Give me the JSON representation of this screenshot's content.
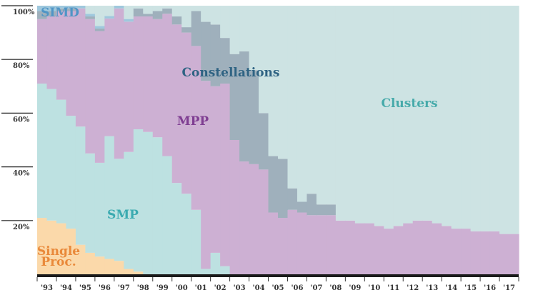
{
  "chart_data": {
    "type": "area",
    "stacked": true,
    "step": true,
    "normalized_to_percent": true,
    "title": "",
    "xlabel": "",
    "ylabel": "",
    "ylim": [
      0,
      100
    ],
    "x_tick_labels": [
      "'93",
      "'94",
      "'95",
      "'96",
      "'97",
      "'98",
      "'99",
      "'00",
      "'01",
      "'02",
      "'03",
      "'04",
      "'05",
      "'06",
      "'07",
      "'08",
      "'09",
      "'10",
      "'11",
      "'12",
      "'13",
      "'14",
      "'15",
      "'16",
      "'17"
    ],
    "y_tick_labels": [
      "20%",
      "40%",
      "60%",
      "80%",
      "100%"
    ],
    "y_ticks": [
      20,
      40,
      60,
      80,
      100
    ],
    "grid": false,
    "bars_per_year": 2,
    "series": [
      {
        "name": "Single Proc.",
        "label_lines": [
          "Single",
          "Proc."
        ],
        "color": "#fbd9aa",
        "label_color": "#e9893a",
        "values": [
          21,
          20,
          19,
          17,
          11,
          8,
          7,
          6,
          5,
          2,
          1,
          0,
          0,
          0,
          0,
          0,
          0,
          0,
          0,
          0,
          0,
          0,
          0,
          0,
          0,
          0,
          0,
          0,
          0,
          0,
          0,
          0,
          0,
          0,
          0,
          0,
          0,
          0,
          0,
          0,
          0,
          0,
          0,
          0,
          0,
          0,
          0,
          0,
          0,
          0
        ]
      },
      {
        "name": "SMP",
        "color": "#bde1e1",
        "label_color": "#3aaab0",
        "values": [
          50,
          49,
          46,
          42,
          44,
          37,
          37,
          48,
          38,
          44,
          53,
          53,
          51,
          44,
          34,
          30,
          24,
          2,
          8,
          3,
          0,
          0,
          0,
          0,
          0,
          0,
          0,
          0,
          0,
          0,
          0,
          0,
          0,
          0,
          0,
          0,
          0,
          0,
          0,
          0,
          0,
          0,
          0,
          0,
          0,
          0,
          0,
          0,
          0,
          0
        ]
      },
      {
        "name": "MPP",
        "color": "#cdb0d3",
        "label_color": "#7f3e92",
        "values": [
          24,
          27,
          33,
          39,
          44,
          50,
          52,
          46,
          56,
          49,
          42,
          43,
          44,
          53,
          59,
          60,
          61,
          70,
          62,
          68,
          50,
          42,
          41,
          39,
          23,
          21,
          24,
          23,
          22,
          22,
          22,
          20,
          20,
          19,
          19,
          18,
          17,
          18,
          19,
          20,
          20,
          19,
          18,
          17,
          17,
          16,
          16,
          16,
          15,
          15
        ]
      },
      {
        "name": "Constellations",
        "color": "#9fb0bc",
        "label_color": "#2f6383",
        "values": [
          3,
          2,
          1,
          1,
          0,
          1,
          1,
          0,
          0,
          0,
          3,
          1,
          3,
          2,
          3,
          2,
          13,
          22,
          23,
          17,
          32,
          41,
          35,
          21,
          21,
          22,
          8,
          4,
          8,
          4,
          4,
          0,
          0,
          0,
          0,
          0,
          0,
          0,
          0,
          0,
          0,
          0,
          0,
          0,
          0,
          0,
          0,
          0,
          0,
          0
        ]
      },
      {
        "name": "SIMD",
        "color": "#9fc8dd",
        "label_color": "#4f95c6",
        "values": [
          2,
          2,
          1,
          1,
          1,
          1,
          1,
          1,
          1,
          1,
          0,
          0,
          0,
          0,
          0,
          0,
          0,
          0,
          0,
          0,
          0,
          0,
          0,
          0,
          0,
          0,
          0,
          0,
          0,
          0,
          0,
          0,
          0,
          0,
          0,
          0,
          0,
          0,
          0,
          0,
          0,
          0,
          0,
          0,
          0,
          0,
          0,
          0,
          0,
          0
        ]
      },
      {
        "name": "Clusters",
        "color": "#cde3e3",
        "label_color": "#46aaaa",
        "values": [
          0,
          0,
          0,
          0,
          0,
          3,
          8,
          4,
          0,
          5,
          1,
          3,
          2,
          1,
          4,
          8,
          2,
          6,
          7,
          12,
          18,
          17,
          24,
          40,
          56,
          57,
          68,
          73,
          70,
          74,
          74,
          80,
          80,
          81,
          81,
          82,
          83,
          82,
          81,
          80,
          80,
          81,
          82,
          83,
          83,
          84,
          84,
          84,
          85,
          85
        ]
      }
    ]
  }
}
